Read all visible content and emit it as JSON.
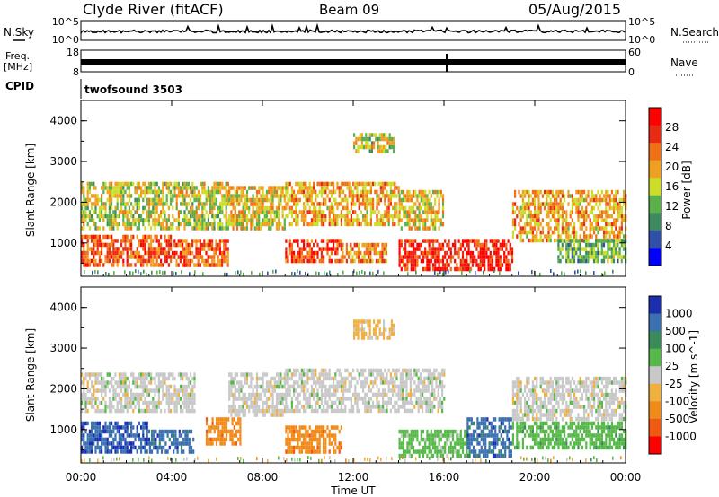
{
  "header": {
    "station": "Clyde River (fitACF)",
    "beam": "Beam 09",
    "date": "05/Aug/2015"
  },
  "aux_panels": {
    "nsky": {
      "label": "N.Sky",
      "top_tick": "10^5",
      "bottom_tick": "10^0"
    },
    "nsearch": {
      "label": "N.Search",
      "top_tick": "10^5",
      "bottom_tick": "10^0"
    },
    "freq": {
      "label_line1": "Freq.",
      "label_line2": "[MHz]",
      "top_tick": "18",
      "bottom_tick": "8"
    },
    "nave": {
      "label": "Nave",
      "top_tick": "60",
      "bottom_tick": "0"
    },
    "cpid": {
      "label": "CPID",
      "value": "twofsound 3503"
    }
  },
  "colors": {
    "power_scale": [
      "#0000ff",
      "#2f4fa8",
      "#3e8a5f",
      "#5ab04a",
      "#cddc28",
      "#f0a020",
      "#f07018",
      "#e82a14",
      "#ff0000"
    ],
    "velocity_scale": [
      "#1a2fb0",
      "#3a6fb0",
      "#3a8a5a",
      "#56b848",
      "#c8c8c8",
      "#f0b040",
      "#f08a1a",
      "#f05a10",
      "#ff0000"
    ]
  },
  "chart_data": [
    {
      "type": "heatmap",
      "title": "Power",
      "xlabel": "",
      "ylabel": "Slant Range [km]",
      "xlim": [
        0,
        24
      ],
      "ylim": [
        180,
        4500
      ],
      "x_ticks": [
        0,
        4,
        8,
        12,
        16,
        20,
        24
      ],
      "y_ticks": [
        1000,
        2000,
        3000,
        4000
      ],
      "y_tick_labels": [
        "1000",
        "2000",
        "3000",
        "4000"
      ],
      "colorbar": {
        "label": "Power [dB]",
        "ticks": [
          "4",
          "8",
          "12",
          "16",
          "20",
          "24",
          "28"
        ]
      },
      "regions": [
        {
          "t0": 0.0,
          "t1": 4.0,
          "r0": 500,
          "r1": 1200,
          "value": 24
        },
        {
          "t0": 0.0,
          "t1": 6.5,
          "r0": 1400,
          "r1": 2500,
          "value": 16
        },
        {
          "t0": 4.0,
          "t1": 6.5,
          "r0": 500,
          "r1": 1100,
          "value": 24
        },
        {
          "t0": 6.5,
          "t1": 9.0,
          "r0": 1400,
          "r1": 2400,
          "value": 18
        },
        {
          "t0": 9.0,
          "t1": 14.0,
          "r0": 1500,
          "r1": 2500,
          "value": 20
        },
        {
          "t0": 9.0,
          "t1": 11.5,
          "r0": 600,
          "r1": 1100,
          "value": 26
        },
        {
          "t0": 11.5,
          "t1": 13.5,
          "r0": 600,
          "r1": 1000,
          "value": 22
        },
        {
          "t0": 12.0,
          "t1": 13.8,
          "r0": 3300,
          "r1": 3700,
          "value": 16
        },
        {
          "t0": 14.0,
          "t1": 16.0,
          "r0": 1400,
          "r1": 2300,
          "value": 18
        },
        {
          "t0": 14.0,
          "t1": 19.0,
          "r0": 350,
          "r1": 1100,
          "value": 28
        },
        {
          "t0": 19.0,
          "t1": 24.0,
          "r0": 1100,
          "r1": 2300,
          "value": 20
        },
        {
          "t0": 21.0,
          "t1": 24.0,
          "r0": 600,
          "r1": 1100,
          "value": 12
        }
      ]
    },
    {
      "type": "heatmap",
      "title": "Velocity",
      "xlabel": "Time UT",
      "ylabel": "Slant Range [km]",
      "xlim": [
        0,
        24
      ],
      "ylim": [
        180,
        4500
      ],
      "x_ticks": [
        0,
        4,
        8,
        12,
        16,
        20,
        24
      ],
      "x_tick_labels": [
        "00:00",
        "04:00",
        "08:00",
        "12:00",
        "16:00",
        "20:00",
        "00:00"
      ],
      "y_ticks": [
        1000,
        2000,
        3000,
        4000
      ],
      "y_tick_labels": [
        "1000",
        "2000",
        "3000",
        "4000"
      ],
      "colorbar": {
        "label": "Velocity [m s^-1]",
        "ticks": [
          "1000",
          "500",
          "100",
          "25",
          "-25",
          "-100",
          "-500",
          "-1000"
        ]
      },
      "regions": [
        {
          "t0": 0.0,
          "t1": 3.0,
          "r0": 500,
          "r1": 1200,
          "value": 700
        },
        {
          "t0": 0.0,
          "t1": 5.0,
          "r0": 1500,
          "r1": 2400,
          "value": 0
        },
        {
          "t0": 3.0,
          "t1": 5.0,
          "r0": 500,
          "r1": 1000,
          "value": 600
        },
        {
          "t0": 5.5,
          "t1": 7.0,
          "r0": 700,
          "r1": 1300,
          "value": -300
        },
        {
          "t0": 6.5,
          "t1": 9.0,
          "r0": 1400,
          "r1": 2400,
          "value": 0
        },
        {
          "t0": 9.0,
          "t1": 11.5,
          "r0": 500,
          "r1": 1100,
          "value": -300
        },
        {
          "t0": 9.0,
          "t1": 16.0,
          "r0": 1500,
          "r1": 2500,
          "value": 0
        },
        {
          "t0": 12.0,
          "t1": 13.8,
          "r0": 3300,
          "r1": 3700,
          "value": -50
        },
        {
          "t0": 14.0,
          "t1": 17.0,
          "r0": 350,
          "r1": 1000,
          "value": 50
        },
        {
          "t0": 17.0,
          "t1": 19.0,
          "r0": 400,
          "r1": 1300,
          "value": 600
        },
        {
          "t0": 19.0,
          "t1": 24.0,
          "r0": 1300,
          "r1": 2300,
          "value": 0
        },
        {
          "t0": 19.0,
          "t1": 24.0,
          "r0": 600,
          "r1": 1200,
          "value": 60
        }
      ]
    }
  ]
}
